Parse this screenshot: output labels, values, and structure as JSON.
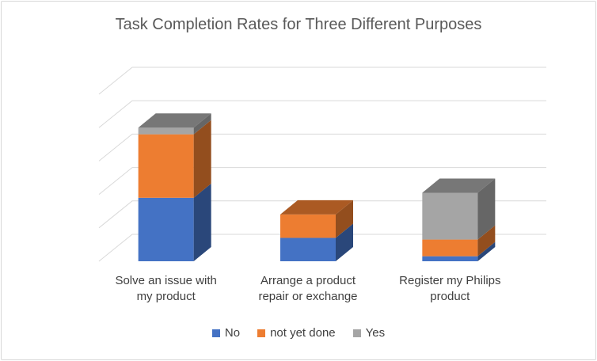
{
  "chart_data": {
    "type": "bar",
    "stacked": true,
    "three_d": true,
    "title": "Task Completion Rates for Three Different Purposes",
    "categories": [
      [
        "Solve an issue with",
        "my product"
      ],
      [
        "Arrange a product",
        "repair or exchange"
      ],
      [
        "Register my Philips",
        "product"
      ]
    ],
    "series": [
      {
        "name": "No",
        "color": "#4472c4",
        "values": [
          19,
          7,
          1.5
        ]
      },
      {
        "name": "not yet done",
        "color": "#ed7d31",
        "values": [
          19,
          7,
          5
        ]
      },
      {
        "name": "Yes",
        "color": "#a5a5a5",
        "values": [
          2,
          0,
          14
        ]
      }
    ],
    "ylim": [
      0,
      50
    ],
    "grid": true,
    "legend_position": "bottom"
  }
}
